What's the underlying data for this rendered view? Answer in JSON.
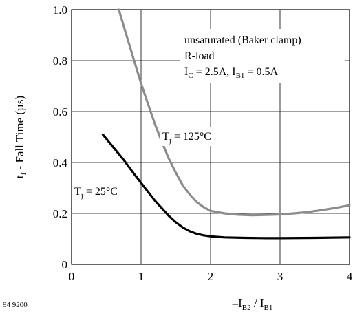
{
  "chart_data": {
    "type": "line",
    "title": "",
    "xlabel": "–I_B2 / I_B1",
    "ylabel": "t_f - Fall Time (µs)",
    "xlim": [
      0,
      4
    ],
    "ylim": [
      0,
      1.0
    ],
    "grid": true,
    "x_ticks": [
      "0",
      "1",
      "2",
      "3",
      "4"
    ],
    "y_ticks": [
      "0",
      "0.2",
      "0.4",
      "0.6",
      "0.8",
      "1.0"
    ],
    "annotation_lines": [
      "unsaturated (Baker clamp)",
      "R-load",
      "I_C = 2.5A, I_B1 = 0.5A"
    ],
    "figure_code": "94 9200",
    "series": [
      {
        "name": "T_j = 125°C",
        "color": "#8c8c8c",
        "x": [
          0.68,
          0.8,
          0.9,
          1.0,
          1.1,
          1.2,
          1.3,
          1.4,
          1.5,
          1.6,
          1.7,
          1.8,
          1.9,
          2.0,
          2.2,
          2.4,
          2.6,
          2.8,
          3.0,
          3.2,
          3.4,
          3.6,
          3.8,
          4.0
        ],
        "y": [
          1.0,
          0.89,
          0.8,
          0.71,
          0.63,
          0.55,
          0.48,
          0.415,
          0.36,
          0.31,
          0.275,
          0.245,
          0.225,
          0.21,
          0.2,
          0.195,
          0.193,
          0.194,
          0.196,
          0.2,
          0.205,
          0.213,
          0.222,
          0.232
        ]
      },
      {
        "name": "T_j = 25°C",
        "color": "#000000",
        "x": [
          0.45,
          0.6,
          0.75,
          0.9,
          1.0,
          1.1,
          1.2,
          1.3,
          1.4,
          1.5,
          1.6,
          1.7,
          1.8,
          1.9,
          2.0,
          2.2,
          2.5,
          2.8,
          3.0,
          3.5,
          4.0
        ],
        "y": [
          0.51,
          0.46,
          0.41,
          0.355,
          0.32,
          0.285,
          0.25,
          0.22,
          0.19,
          0.165,
          0.145,
          0.13,
          0.12,
          0.114,
          0.11,
          0.106,
          0.104,
          0.103,
          0.103,
          0.104,
          0.106
        ]
      }
    ]
  }
}
